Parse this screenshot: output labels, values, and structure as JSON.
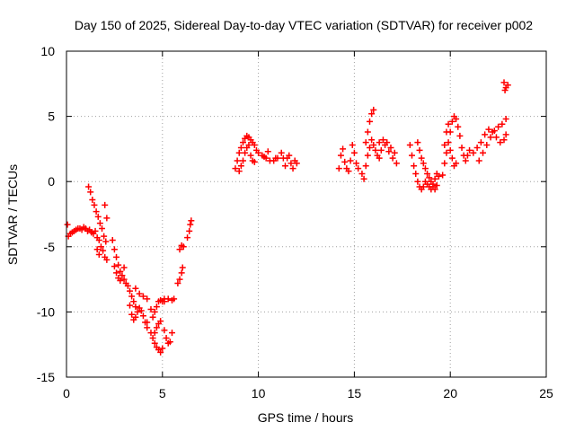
{
  "chart_data": {
    "type": "scatter",
    "title": "Day 150 of 2025, Sidereal Day-to-day VTEC variation (SDTVAR) for receiver p002",
    "xlabel": "GPS time / hours",
    "ylabel": "SDTVAR / TECUs",
    "xlim": [
      0,
      25
    ],
    "ylim": [
      -15,
      10
    ],
    "xticks": [
      0,
      5,
      10,
      15,
      20,
      25
    ],
    "yticks": [
      -15,
      -10,
      -5,
      0,
      5,
      10
    ],
    "xtick_labels": [
      "0",
      "5",
      "10",
      "15",
      "20",
      "25"
    ],
    "ytick_labels": [
      "-15",
      "-10",
      "-5",
      "0",
      "5",
      "10"
    ],
    "grid": true,
    "marker": "+",
    "marker_color": "#ff0000",
    "series": [
      {
        "name": "p002",
        "points": [
          [
            0.05,
            -3.3
          ],
          [
            0.1,
            -4.2
          ],
          [
            0.2,
            -4.0
          ],
          [
            0.3,
            -3.9
          ],
          [
            0.4,
            -3.8
          ],
          [
            0.5,
            -3.7
          ],
          [
            0.6,
            -3.6
          ],
          [
            0.7,
            -3.6
          ],
          [
            0.8,
            -3.7
          ],
          [
            0.9,
            -3.5
          ],
          [
            1.0,
            -3.6
          ],
          [
            1.1,
            -3.8
          ],
          [
            1.2,
            -3.7
          ],
          [
            1.3,
            -3.9
          ],
          [
            1.4,
            -4.0
          ],
          [
            1.5,
            -3.8
          ],
          [
            1.6,
            -4.3
          ],
          [
            1.7,
            -4.5
          ],
          [
            1.8,
            -5.0
          ],
          [
            1.9,
            -5.3
          ],
          [
            2.0,
            -5.8
          ],
          [
            2.1,
            -6.0
          ],
          [
            1.6,
            -5.2
          ],
          [
            1.7,
            -5.6
          ],
          [
            1.15,
            -0.4
          ],
          [
            1.25,
            -0.8
          ],
          [
            1.35,
            -1.4
          ],
          [
            1.45,
            -1.8
          ],
          [
            1.55,
            -2.3
          ],
          [
            1.65,
            -2.7
          ],
          [
            1.75,
            -3.2
          ],
          [
            1.85,
            -3.6
          ],
          [
            1.95,
            -4.2
          ],
          [
            2.05,
            -4.6
          ],
          [
            2.0,
            -1.8
          ],
          [
            2.1,
            -2.8
          ],
          [
            2.4,
            -4.5
          ],
          [
            2.5,
            -5.2
          ],
          [
            2.6,
            -5.8
          ],
          [
            2.7,
            -6.4
          ],
          [
            2.8,
            -6.9
          ],
          [
            2.9,
            -7.2
          ],
          [
            3.0,
            -7.5
          ],
          [
            3.1,
            -7.8
          ],
          [
            2.5,
            -6.5
          ],
          [
            2.6,
            -7.0
          ],
          [
            2.7,
            -7.4
          ],
          [
            2.8,
            -7.6
          ],
          [
            3.0,
            -6.6
          ],
          [
            3.2,
            -8.0
          ],
          [
            3.3,
            -8.4
          ],
          [
            3.4,
            -8.8
          ],
          [
            3.5,
            -9.2
          ],
          [
            3.6,
            -9.6
          ],
          [
            3.7,
            -10.0
          ],
          [
            3.3,
            -9.5
          ],
          [
            3.4,
            -10.2
          ],
          [
            3.5,
            -10.6
          ],
          [
            3.6,
            -10.4
          ],
          [
            3.8,
            -9.7
          ],
          [
            3.9,
            -9.9
          ],
          [
            4.0,
            -10.3
          ],
          [
            4.1,
            -10.8
          ],
          [
            4.2,
            -11.2
          ],
          [
            3.6,
            -8.2
          ],
          [
            3.8,
            -8.6
          ],
          [
            4.0,
            -8.8
          ],
          [
            4.2,
            -9.0
          ],
          [
            4.4,
            -9.8
          ],
          [
            4.5,
            -10.4
          ],
          [
            4.6,
            -10.0
          ],
          [
            4.7,
            -9.6
          ],
          [
            4.8,
            -9.2
          ],
          [
            4.9,
            -9.1
          ],
          [
            5.0,
            -9.2
          ],
          [
            5.1,
            -9.0
          ],
          [
            4.2,
            -10.8
          ],
          [
            4.4,
            -11.6
          ],
          [
            4.5,
            -12.0
          ],
          [
            4.6,
            -12.4
          ],
          [
            4.7,
            -12.7
          ],
          [
            4.8,
            -12.9
          ],
          [
            4.9,
            -13.1
          ],
          [
            5.0,
            -12.8
          ],
          [
            4.6,
            -11.6
          ],
          [
            4.7,
            -11.2
          ],
          [
            4.8,
            -10.9
          ],
          [
            4.9,
            -10.7
          ],
          [
            5.1,
            -11.4
          ],
          [
            5.2,
            -12.0
          ],
          [
            5.3,
            -12.4
          ],
          [
            5.4,
            -12.3
          ],
          [
            5.5,
            -11.6
          ],
          [
            5.1,
            -9.2
          ],
          [
            5.3,
            -9.0
          ],
          [
            5.5,
            -9.1
          ],
          [
            5.6,
            -9.0
          ],
          [
            5.8,
            -7.8
          ],
          [
            5.9,
            -7.5
          ],
          [
            6.0,
            -7.0
          ],
          [
            6.05,
            -6.6
          ],
          [
            5.9,
            -5.2
          ],
          [
            6.0,
            -4.9
          ],
          [
            6.1,
            -5.0
          ],
          [
            6.3,
            -4.3
          ],
          [
            6.4,
            -3.8
          ],
          [
            6.45,
            -3.3
          ],
          [
            6.5,
            -3.0
          ],
          [
            8.8,
            1.0
          ],
          [
            8.9,
            1.6
          ],
          [
            9.0,
            2.2
          ],
          [
            9.1,
            2.6
          ],
          [
            9.2,
            3.0
          ],
          [
            9.3,
            3.3
          ],
          [
            9.4,
            3.5
          ],
          [
            9.5,
            3.4
          ],
          [
            9.6,
            3.2
          ],
          [
            9.7,
            3.0
          ],
          [
            9.8,
            2.8
          ],
          [
            9.9,
            2.4
          ],
          [
            9.0,
            0.8
          ],
          [
            9.1,
            1.2
          ],
          [
            9.2,
            1.6
          ],
          [
            9.3,
            2.2
          ],
          [
            9.4,
            2.6
          ],
          [
            9.5,
            2.8
          ],
          [
            9.6,
            2.0
          ],
          [
            9.7,
            1.6
          ],
          [
            9.8,
            1.5
          ],
          [
            10.0,
            2.2
          ],
          [
            10.2,
            2.0
          ],
          [
            10.4,
            1.8
          ],
          [
            10.6,
            1.6
          ],
          [
            10.8,
            1.6
          ],
          [
            11.0,
            1.8
          ],
          [
            11.2,
            2.2
          ],
          [
            11.3,
            1.8
          ],
          [
            11.4,
            1.2
          ],
          [
            11.5,
            1.8
          ],
          [
            11.6,
            2.0
          ],
          [
            11.7,
            1.4
          ],
          [
            11.8,
            1.0
          ],
          [
            11.9,
            1.6
          ],
          [
            12.0,
            1.4
          ],
          [
            10.3,
            1.9
          ],
          [
            10.5,
            2.3
          ],
          [
            10.9,
            1.8
          ],
          [
            14.2,
            1.0
          ],
          [
            14.3,
            2.0
          ],
          [
            14.4,
            2.5
          ],
          [
            14.5,
            1.5
          ],
          [
            14.6,
            1.0
          ],
          [
            14.7,
            0.8
          ],
          [
            14.8,
            1.6
          ],
          [
            14.9,
            2.8
          ],
          [
            15.0,
            2.2
          ],
          [
            15.1,
            1.4
          ],
          [
            15.2,
            1.0
          ],
          [
            15.4,
            0.6
          ],
          [
            15.5,
            0.2
          ],
          [
            15.6,
            1.2
          ],
          [
            15.7,
            2.0
          ],
          [
            15.8,
            2.6
          ],
          [
            15.9,
            3.2
          ],
          [
            16.0,
            2.8
          ],
          [
            16.1,
            2.4
          ],
          [
            16.2,
            2.0
          ],
          [
            16.3,
            1.8
          ],
          [
            16.4,
            2.4
          ],
          [
            16.6,
            2.8
          ],
          [
            16.8,
            2.3
          ],
          [
            17.0,
            1.8
          ],
          [
            17.2,
            1.4
          ],
          [
            15.6,
            3.0
          ],
          [
            15.7,
            3.8
          ],
          [
            15.8,
            4.6
          ],
          [
            15.9,
            5.2
          ],
          [
            16.0,
            5.5
          ],
          [
            16.3,
            3.0
          ],
          [
            16.5,
            3.2
          ],
          [
            16.7,
            3.0
          ],
          [
            16.9,
            2.6
          ],
          [
            17.1,
            2.2
          ],
          [
            17.9,
            2.8
          ],
          [
            18.0,
            2.0
          ],
          [
            18.1,
            1.2
          ],
          [
            18.2,
            0.6
          ],
          [
            18.3,
            0.0
          ],
          [
            18.4,
            -0.4
          ],
          [
            18.5,
            -0.6
          ],
          [
            18.6,
            -0.4
          ],
          [
            18.7,
            0.0
          ],
          [
            18.8,
            -0.2
          ],
          [
            18.9,
            -0.4
          ],
          [
            19.0,
            -0.6
          ],
          [
            19.1,
            -0.4
          ],
          [
            19.2,
            -0.6
          ],
          [
            19.3,
            -0.3
          ],
          [
            18.3,
            3.0
          ],
          [
            18.4,
            2.4
          ],
          [
            18.5,
            1.8
          ],
          [
            18.6,
            1.4
          ],
          [
            18.7,
            1.0
          ],
          [
            18.8,
            0.6
          ],
          [
            18.9,
            0.3
          ],
          [
            19.0,
            0.0
          ],
          [
            19.1,
            -0.2
          ],
          [
            19.2,
            0.2
          ],
          [
            19.3,
            0.6
          ],
          [
            19.4,
            0.4
          ],
          [
            19.6,
            0.5
          ],
          [
            19.7,
            1.4
          ],
          [
            19.8,
            2.2
          ],
          [
            19.9,
            3.0
          ],
          [
            20.0,
            3.8
          ],
          [
            20.1,
            4.6
          ],
          [
            20.2,
            5.0
          ],
          [
            20.3,
            4.8
          ],
          [
            20.4,
            4.2
          ],
          [
            20.5,
            3.5
          ],
          [
            20.6,
            2.6
          ],
          [
            20.7,
            2.0
          ],
          [
            20.8,
            1.6
          ],
          [
            20.9,
            2.0
          ],
          [
            21.0,
            2.4
          ],
          [
            20.0,
            2.4
          ],
          [
            20.1,
            1.8
          ],
          [
            20.2,
            1.2
          ],
          [
            20.3,
            1.4
          ],
          [
            19.9,
            4.4
          ],
          [
            19.8,
            3.8
          ],
          [
            19.7,
            2.8
          ],
          [
            21.2,
            2.2
          ],
          [
            21.4,
            2.6
          ],
          [
            21.6,
            3.0
          ],
          [
            21.8,
            3.6
          ],
          [
            22.0,
            4.0
          ],
          [
            22.2,
            3.8
          ],
          [
            22.4,
            3.4
          ],
          [
            22.6,
            3.0
          ],
          [
            22.8,
            3.2
          ],
          [
            22.9,
            3.6
          ],
          [
            21.5,
            1.6
          ],
          [
            21.7,
            2.2
          ],
          [
            21.9,
            2.8
          ],
          [
            22.1,
            3.4
          ],
          [
            22.3,
            3.9
          ],
          [
            22.5,
            4.2
          ],
          [
            22.7,
            4.4
          ],
          [
            22.9,
            4.8
          ],
          [
            22.8,
            7.6
          ],
          [
            22.9,
            7.2
          ],
          [
            23.0,
            7.4
          ],
          [
            22.85,
            7.0
          ]
        ]
      }
    ]
  }
}
